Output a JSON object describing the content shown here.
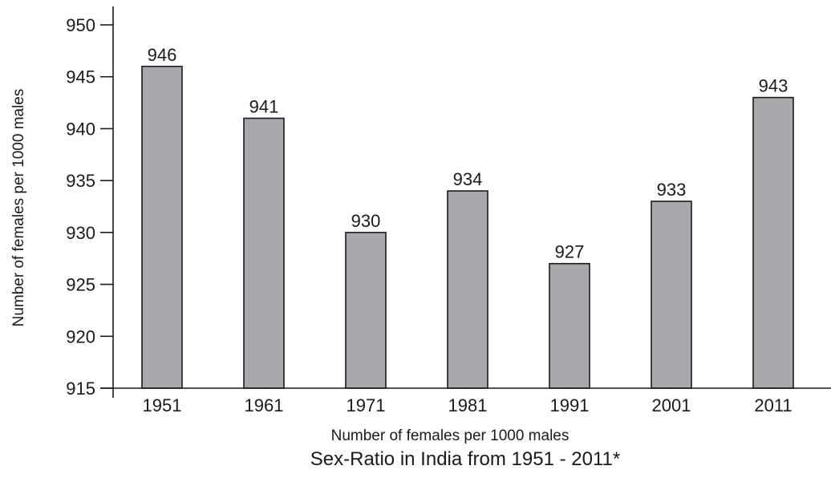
{
  "chart_data": {
    "type": "bar",
    "title": "Sex-Ratio in India from 1951 - 2011*",
    "xlabel": "Number of females per 1000 males",
    "ylabel": "Number of females per 1000 males",
    "categories": [
      "1951",
      "1961",
      "1971",
      "1981",
      "1991",
      "2001",
      "2011"
    ],
    "values": [
      946,
      941,
      930,
      934,
      927,
      933,
      943
    ],
    "ylim": [
      915,
      950
    ],
    "yticks": [
      915,
      920,
      925,
      930,
      935,
      940,
      945,
      950
    ],
    "grid": false,
    "legend": "none",
    "colors": {
      "bar_fill": "#a7a9ac",
      "bar_stroke": "#1a1a1a",
      "axis": "#1a1a1a",
      "text": "#1a1a1a"
    }
  }
}
